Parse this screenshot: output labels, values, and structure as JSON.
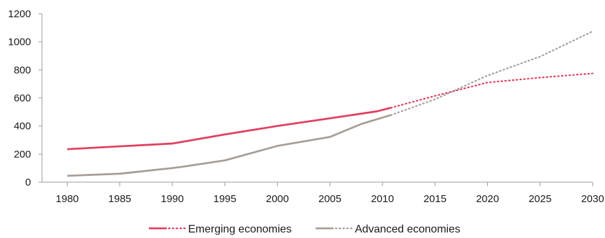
{
  "chart_data": {
    "type": "line",
    "title": "",
    "xlabel": "",
    "ylabel": "",
    "xlim": [
      1977.6,
      2030
    ],
    "ylim": [
      0,
      1200
    ],
    "x_ticks": [
      "1980",
      "1985",
      "1990",
      "1995",
      "2000",
      "2005",
      "2010",
      "2015",
      "2020",
      "2025",
      "2030"
    ],
    "y_ticks": [
      "0",
      "200",
      "400",
      "600",
      "800",
      "1000",
      "1200"
    ],
    "grid": false,
    "legend_position": "bottom-center",
    "series": [
      {
        "name": "Emerging economies",
        "color": "#e0405f",
        "historical": [
          [
            1980,
            235
          ],
          [
            1985,
            255
          ],
          [
            1990,
            275
          ],
          [
            1995,
            340
          ],
          [
            2000,
            400
          ],
          [
            2005,
            455
          ],
          [
            2009.5,
            505
          ],
          [
            2010.8,
            530
          ]
        ],
        "projected": [
          [
            2010.8,
            530
          ],
          [
            2015,
            615
          ],
          [
            2020,
            710
          ],
          [
            2025,
            745
          ],
          [
            2030,
            775
          ]
        ]
      },
      {
        "name": "Advanced economies",
        "color": "#a89e98",
        "historical": [
          [
            1980,
            45
          ],
          [
            1985,
            60
          ],
          [
            1990,
            100
          ],
          [
            1991,
            110
          ],
          [
            1995,
            155
          ],
          [
            2000,
            258
          ],
          [
            2005,
            322
          ],
          [
            2008,
            415
          ],
          [
            2010.8,
            478
          ]
        ],
        "projected": [
          [
            2010.8,
            478
          ],
          [
            2015,
            590
          ],
          [
            2020,
            760
          ],
          [
            2025,
            895
          ],
          [
            2030,
            1075
          ]
        ]
      }
    ]
  }
}
